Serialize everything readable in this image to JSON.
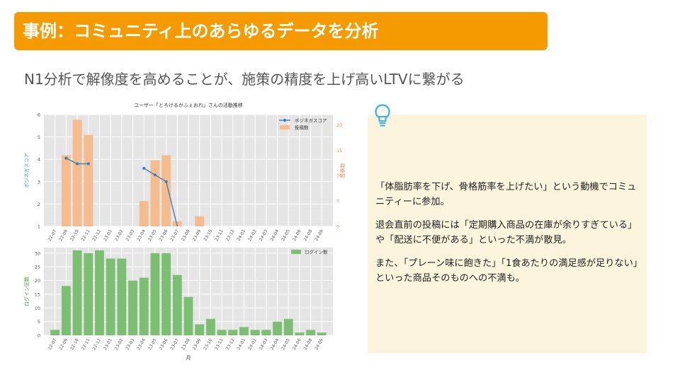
{
  "header": {
    "title": "事例：コミュニティ上のあらゆるデータを分析",
    "subtitle": "N1分析で解像度を高めることが、施策の精度を上げ高いLTVに繋がる"
  },
  "note": {
    "icon": "lightbulb-icon",
    "paragraphs": [
      "「体脂肪率を下げ、骨格筋率を上げたい」という動機でコミュニティーに参加。",
      "退会直前の投稿には「定期購入商品の在庫が余りすぎている」や「配送に不便がある」といった不満が散見。",
      "また、「プレーン味に飽きた」「1食あたりの満足感が足りない」といった商品そのものへの不満も。"
    ]
  },
  "colors": {
    "accent": "#f59a00",
    "positive_line": "#3b7dbf",
    "posts_bar": "#f6bc8d",
    "login_bar": "#7cbf73",
    "plot_bg": "#e5e5e5",
    "note_bg": "#fcf4dc"
  },
  "chart_data": [
    {
      "type": "bar",
      "title": "ユーザー「とろけるかふぇおれ」さんの活動推移",
      "categories": [
        "22-07",
        "22-09",
        "22-10",
        "22-11",
        "22-12",
        "23-01",
        "23-02",
        "23-03",
        "23-04",
        "23-05",
        "23-06",
        "23-07",
        "23-08",
        "23-09",
        "23-10",
        "23-11",
        "23-12",
        "24-01",
        "24-02",
        "24-03",
        "24-04",
        "24-05",
        "24-06",
        "24-08",
        "24-09"
      ],
      "ylabel": "ポジネガスコア",
      "ylim": [
        1,
        6
      ],
      "y_ticks": [
        1,
        2,
        3,
        4,
        5,
        6
      ],
      "y2label": "投稿数",
      "y2lim": [
        0,
        22
      ],
      "y2_ticks": [
        0,
        5,
        10,
        15,
        20
      ],
      "grid": true,
      "legend_position": "top-right",
      "series": [
        {
          "name": "ポジネガスコア",
          "type": "line",
          "axis": "left",
          "values": [
            null,
            4.05,
            3.8,
            3.8,
            null,
            null,
            null,
            null,
            3.6,
            3.3,
            3.0,
            1.0,
            null,
            null,
            null,
            null,
            null,
            null,
            null,
            null,
            null,
            null,
            null,
            null,
            null
          ]
        },
        {
          "name": "投稿数",
          "type": "bar",
          "axis": "right",
          "values": [
            0,
            14,
            21,
            18,
            0,
            0,
            0,
            0,
            5,
            13,
            14,
            1,
            0,
            2,
            0,
            0,
            0,
            0,
            0,
            0,
            0,
            0,
            0,
            0,
            0
          ]
        }
      ]
    },
    {
      "type": "bar",
      "categories": [
        "22-07",
        "22-09",
        "22-10",
        "22-11",
        "22-12",
        "23-01",
        "23-02",
        "23-03",
        "23-04",
        "23-05",
        "23-06",
        "23-07",
        "23-08",
        "23-09",
        "23-10",
        "23-11",
        "23-12",
        "24-01",
        "24-02",
        "24-03",
        "24-04",
        "24-05",
        "24-06",
        "24-08",
        "24-09"
      ],
      "xlabel": "月",
      "ylabel": "ログイン回数",
      "ylim": [
        0,
        32
      ],
      "y_ticks": [
        0,
        5,
        10,
        15,
        20,
        25,
        30
      ],
      "grid": true,
      "legend_position": "top-right",
      "series": [
        {
          "name": "ログイン数",
          "values": [
            2,
            18,
            31,
            30,
            31,
            28,
            28,
            20,
            21,
            30,
            30,
            22,
            14,
            4,
            6,
            2,
            2,
            3,
            2,
            2,
            5,
            6,
            1,
            2,
            1
          ]
        }
      ]
    }
  ]
}
